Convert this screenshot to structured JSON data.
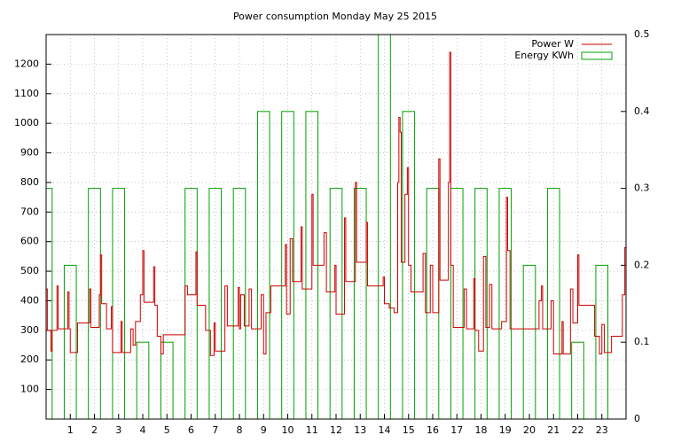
{
  "chart_data": {
    "type": "line",
    "title": "Power consumption Monday May 25 2015",
    "xlim": [
      0,
      24
    ],
    "xticks": [
      1,
      2,
      3,
      4,
      5,
      6,
      7,
      8,
      9,
      10,
      11,
      12,
      13,
      14,
      15,
      16,
      17,
      18,
      19,
      20,
      21,
      22,
      23
    ],
    "ylim": [
      0,
      1300
    ],
    "yticks": [
      100,
      200,
      300,
      400,
      500,
      600,
      700,
      800,
      900,
      1000,
      1100,
      1200
    ],
    "y2lim": [
      0,
      0.5
    ],
    "y2ticks": [
      0,
      0.1,
      0.2,
      0.3,
      0.4,
      0.5
    ],
    "grid": true,
    "legend": "top-right",
    "series": [
      {
        "name": "Power W",
        "color": "#cc0000",
        "type": "line",
        "x": [
          0.0,
          0.05,
          0.2,
          0.25,
          0.45,
          0.5,
          0.9,
          0.95,
          1.0,
          1.3,
          1.8,
          1.85,
          2.2,
          2.25,
          2.3,
          2.5,
          2.7,
          2.75,
          3.1,
          3.15,
          3.5,
          3.6,
          3.7,
          3.9,
          4.0,
          4.05,
          4.45,
          4.5,
          4.6,
          4.75,
          4.85,
          5.75,
          5.85,
          6.2,
          6.25,
          6.6,
          6.8,
          6.95,
          7.0,
          7.4,
          7.5,
          7.95,
          8.0,
          8.05,
          8.2,
          8.4,
          8.5,
          8.9,
          9.0,
          9.1,
          9.3,
          9.9,
          9.95,
          10.1,
          10.2,
          10.55,
          10.6,
          11.0,
          11.05,
          11.5,
          11.6,
          11.95,
          12.0,
          12.35,
          12.4,
          12.8,
          12.85,
          13.25,
          13.3,
          13.95,
          14.0,
          14.2,
          14.4,
          14.55,
          14.6,
          14.65,
          14.7,
          14.85,
          14.95,
          15.0,
          15.1,
          15.6,
          15.7,
          15.9,
          16.0,
          16.25,
          16.3,
          16.65,
          16.7,
          16.75,
          16.85,
          17.3,
          17.4,
          17.7,
          17.75,
          17.9,
          18.1,
          18.2,
          18.35,
          18.45,
          18.85,
          19.05,
          19.1,
          19.2,
          20.4,
          20.5,
          20.55,
          20.9,
          21.0,
          21.35,
          21.4,
          21.7,
          21.8,
          22.0,
          22.05,
          22.7,
          22.9,
          23.0,
          23.1,
          23.4,
          23.85,
          23.95
        ],
        "values": [
          440,
          300,
          230,
          300,
          450,
          305,
          430,
          305,
          225,
          325,
          440,
          310,
          420,
          555,
          390,
          305,
          380,
          225,
          330,
          225,
          305,
          250,
          330,
          420,
          570,
          395,
          515,
          385,
          280,
          220,
          285,
          450,
          420,
          565,
          385,
          300,
          215,
          325,
          230,
          450,
          315,
          445,
          305,
          420,
          315,
          440,
          305,
          420,
          220,
          360,
          450,
          590,
          355,
          610,
          465,
          650,
          440,
          760,
          520,
          630,
          430,
          520,
          355,
          680,
          465,
          800,
          530,
          665,
          450,
          480,
          390,
          375,
          360,
          800,
          1020,
          970,
          530,
          760,
          850,
          520,
          430,
          560,
          360,
          520,
          360,
          880,
          470,
          800,
          1240,
          520,
          310,
          440,
          305,
          475,
          300,
          230,
          550,
          310,
          455,
          305,
          330,
          750,
          570,
          305,
          400,
          450,
          305,
          400,
          220,
          330,
          220,
          440,
          325,
          555,
          385,
          280,
          220,
          320,
          225,
          280,
          420,
          580
        ]
      },
      {
        "name": "Energy KWh",
        "color": "#00a000",
        "type": "bar",
        "axis": "y2",
        "x": [
          0,
          1,
          2,
          3,
          4,
          5,
          6,
          7,
          8,
          9,
          10,
          11,
          12,
          13,
          14,
          15,
          16,
          17,
          18,
          19,
          20,
          21,
          22,
          23
        ],
        "values": [
          0.3,
          0.2,
          0.3,
          0.3,
          0.1,
          0.1,
          0.3,
          0.3,
          0.3,
          0.4,
          0.4,
          0.4,
          0.3,
          0.3,
          0.5,
          0.4,
          0.3,
          0.3,
          0.3,
          0.3,
          0.2,
          0.3,
          0.1,
          0.2
        ]
      }
    ]
  }
}
